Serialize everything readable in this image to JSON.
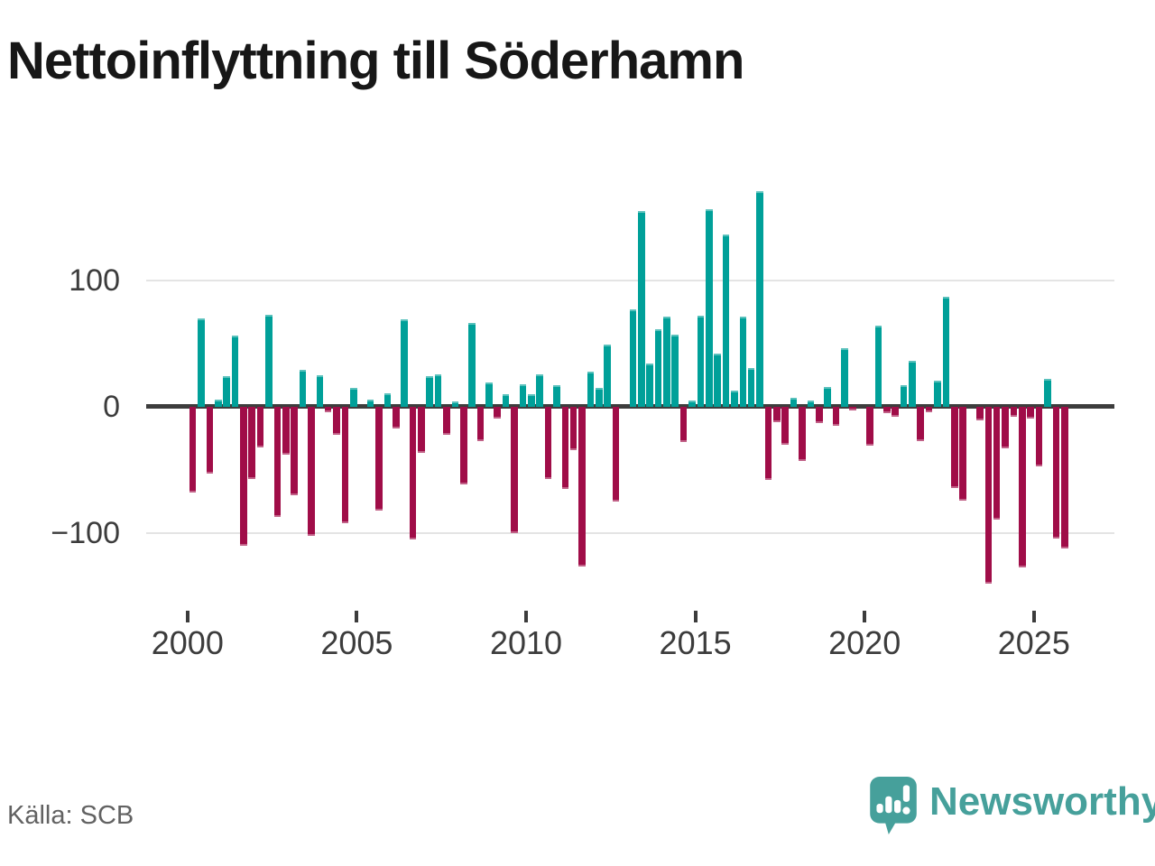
{
  "title": "Nettoinflyttning till Söderhamn",
  "source": {
    "label": "Källa: SCB"
  },
  "branding": {
    "name": "Newsworthy",
    "logo_icon": "newsworthy-logo-icon",
    "color": "#46a09b"
  },
  "colors": {
    "positive": "#00a099",
    "negative": "#a00d48",
    "zero_line": "#3d3d3d",
    "gridline": "#e4e4e4",
    "axis_text": "#3c3c3c",
    "muted_text": "#626262"
  },
  "chart_data": {
    "type": "bar",
    "title": "Nettoinflyttning till Söderhamn",
    "xlabel": "",
    "ylabel": "",
    "x_start": "2000 Q1",
    "x_freq": "quarterly",
    "x_end": "2025 Q4",
    "values": [
      -68,
      70,
      -53,
      6,
      24,
      56,
      -110,
      -57,
      -32,
      73,
      -87,
      -38,
      -70,
      29,
      -102,
      25,
      -4,
      -22,
      -92,
      15,
      0,
      6,
      -82,
      11,
      -17,
      69,
      -105,
      -36,
      24,
      26,
      -22,
      4,
      -61,
      66,
      -27,
      19,
      -9,
      10,
      -100,
      18,
      10,
      26,
      -57,
      17,
      -65,
      -34,
      -126,
      28,
      15,
      49,
      -75,
      0,
      77,
      155,
      34,
      61,
      71,
      57,
      -28,
      5,
      72,
      156,
      42,
      136,
      13,
      71,
      31,
      170,
      -58,
      -12,
      -30,
      7,
      -43,
      5,
      -13,
      16,
      -15,
      46,
      -3,
      0,
      -31,
      64,
      -5,
      -8,
      17,
      36,
      -27,
      -4,
      21,
      87,
      -64,
      -74,
      0,
      -11,
      -140,
      -89,
      -33,
      -8,
      -127,
      -9,
      -47,
      22,
      -104,
      -112
    ],
    "y_ticks": [
      100,
      0,
      -100
    ],
    "y_tick_labels": [
      "100",
      "0",
      "−100"
    ],
    "x_tick_years": [
      2000,
      2005,
      2010,
      2015,
      2020,
      2025
    ],
    "x_tick_labels": [
      "2000",
      "2005",
      "2010",
      "2015",
      "2020",
      "2025"
    ],
    "ylim": [
      -150,
      182
    ],
    "grid": "horizontal",
    "legend": "none",
    "bar_colors": {
      "positive": "#00a099",
      "negative": "#a00d48"
    }
  }
}
